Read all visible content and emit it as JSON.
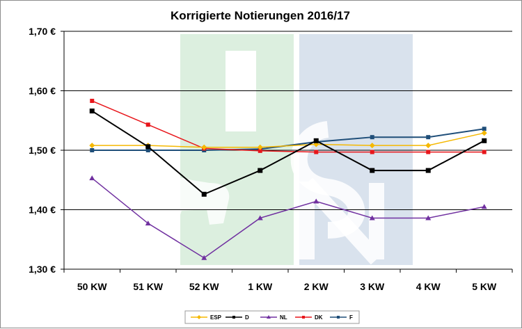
{
  "chart_data": {
    "type": "line",
    "title": "Korrigierte Notierungen 2016/17",
    "xlabel": "",
    "ylabel": "",
    "categories": [
      "50 KW",
      "51 KW",
      "52 KW",
      "1 KW",
      "2 KW",
      "3 KW",
      "4 KW",
      "5 KW"
    ],
    "ylim": [
      1.3,
      1.7
    ],
    "yticks": [
      1.3,
      1.4,
      1.5,
      1.6,
      1.7
    ],
    "ytick_labels": [
      "1,30 €",
      "1,40 €",
      "1,50 €",
      "1,60 €",
      "1,70 €"
    ],
    "grid": "horizontal",
    "legend": "bottom",
    "series": [
      {
        "name": "ESP",
        "color": "#f5b800",
        "marker": "diamond",
        "values": [
          1.508,
          1.508,
          1.505,
          1.505,
          1.51,
          1.508,
          1.508,
          1.529
        ]
      },
      {
        "name": "D",
        "color": "#000000",
        "marker": "square",
        "values": [
          1.566,
          1.506,
          1.426,
          1.466,
          1.516,
          1.466,
          1.466,
          1.516
        ]
      },
      {
        "name": "NL",
        "color": "#7030a0",
        "marker": "triangle",
        "values": [
          1.453,
          1.377,
          1.319,
          1.386,
          1.414,
          1.386,
          1.386,
          1.405
        ]
      },
      {
        "name": "DK",
        "color": "#e8161b",
        "marker": "square",
        "values": [
          1.583,
          1.543,
          1.503,
          1.499,
          1.497,
          1.497,
          1.497,
          1.497
        ]
      },
      {
        "name": "F",
        "color": "#1f4e79",
        "marker": "square",
        "values": [
          1.5,
          1.5,
          1.5,
          1.502,
          1.514,
          1.522,
          1.522,
          1.536
        ]
      }
    ],
    "watermark": {
      "text": "ISN",
      "colors": [
        "#dbeedd",
        "#d8e1ec"
      ]
    }
  }
}
